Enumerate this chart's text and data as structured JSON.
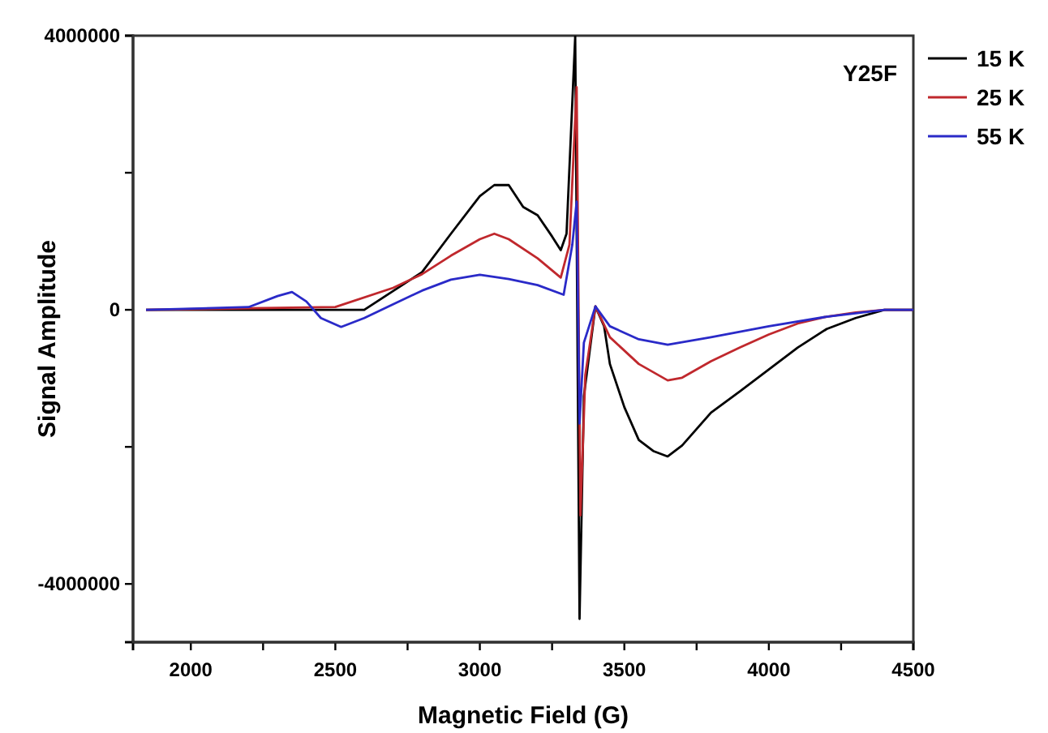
{
  "chart_data": {
    "type": "line",
    "xlabel": "Magnetic Field (G)",
    "ylabel": "Signal Amplitude",
    "annotations": [
      "Y25F"
    ],
    "xlim": [
      1800,
      4500
    ],
    "xticks": [
      2000,
      2500,
      3000,
      3500,
      4000,
      4500,
      {
        "value": 2250,
        "label": null
      },
      {
        "value": 2750,
        "label": null
      },
      {
        "value": 3250,
        "label": null
      },
      {
        "value": 3750,
        "label": null
      },
      {
        "value": 4250,
        "label": null
      }
    ],
    "ylim": [
      -4850000,
      4000000
    ],
    "yticks": [
      -4000000,
      0,
      4000000,
      {
        "value": -2000000,
        "label": null
      },
      {
        "value": 2000000,
        "label": null
      }
    ],
    "grid": false,
    "legend": "top right",
    "marker": "none",
    "line_style": "solid",
    "series": [
      {
        "name": "15 K",
        "color": "#000000",
        "x": [
          1845,
          2100,
          2600,
          2800,
          2900,
          3000,
          3050,
          3100,
          3150,
          3200,
          3250,
          3280,
          3300,
          3330,
          3345,
          3360,
          3400,
          3430,
          3450,
          3500,
          3550,
          3600,
          3650,
          3700,
          3800,
          3900,
          4000,
          4100,
          4200,
          4300,
          4400,
          4500
        ],
        "values": [
          0,
          0,
          0,
          550000,
          1110000,
          1660000,
          1820000,
          1820000,
          1500000,
          1380000,
          1070000,
          870000,
          1110000,
          3990000,
          -4510000,
          -1260000,
          50000,
          -240000,
          -790000,
          -1420000,
          -1900000,
          -2060000,
          -2140000,
          -1980000,
          -1500000,
          -1190000,
          -870000,
          -550000,
          -280000,
          -120000,
          0,
          0
        ]
      },
      {
        "name": "25 K",
        "color": "#c0282d",
        "x": [
          1845,
          2500,
          2700,
          2800,
          2900,
          3000,
          3050,
          3100,
          3200,
          3280,
          3310,
          3335,
          3348,
          3365,
          3400,
          3450,
          3550,
          3650,
          3700,
          3800,
          3900,
          4000,
          4100,
          4200,
          4300,
          4400,
          4500
        ],
        "values": [
          0,
          40000,
          320000,
          520000,
          790000,
          1030000,
          1110000,
          1030000,
          750000,
          470000,
          950000,
          3250000,
          -3000000,
          -950000,
          50000,
          -400000,
          -790000,
          -1030000,
          -990000,
          -750000,
          -550000,
          -360000,
          -200000,
          -100000,
          -40000,
          0,
          0
        ]
      },
      {
        "name": "55 K",
        "color": "#2a2ac8",
        "x": [
          1845,
          2200,
          2300,
          2350,
          2400,
          2450,
          2520,
          2600,
          2700,
          2800,
          2900,
          3000,
          3100,
          3200,
          3290,
          3320,
          3335,
          3345,
          3360,
          3400,
          3450,
          3550,
          3650,
          3800,
          4000,
          4200,
          4400,
          4500
        ],
        "values": [
          0,
          40000,
          200000,
          260000,
          120000,
          -120000,
          -250000,
          -120000,
          80000,
          280000,
          440000,
          510000,
          450000,
          360000,
          220000,
          950000,
          1580000,
          -1660000,
          -480000,
          50000,
          -240000,
          -430000,
          -510000,
          -400000,
          -240000,
          -100000,
          0,
          0
        ]
      }
    ]
  }
}
